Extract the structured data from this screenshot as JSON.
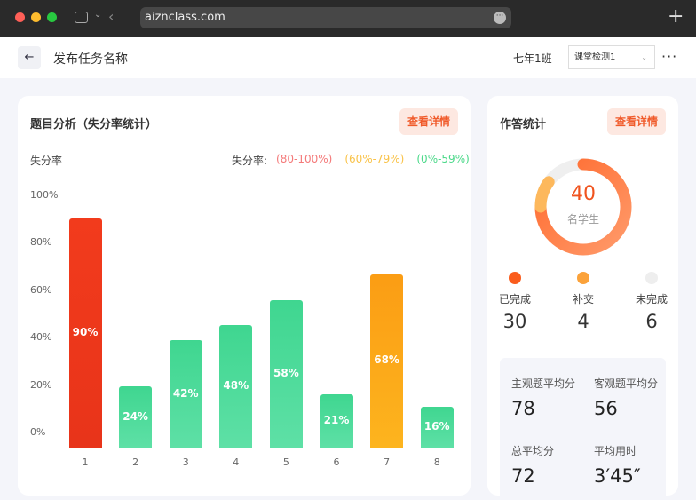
{
  "browser": {
    "url": "aiznclass.com"
  },
  "header": {
    "title": "发布任务名称",
    "class_name": "七年1班",
    "select_value": "课堂检测1"
  },
  "left_card": {
    "title": "题目分析（失分率统计）",
    "detail_button": "查看详情",
    "legend_prefix": "失分率:",
    "legend": [
      {
        "label": "(80-100%)",
        "color": "#f47a7a"
      },
      {
        "label": "(60%-79%)",
        "color": "#f9c34a"
      },
      {
        "label": "(0%-59%)",
        "color": "#4cd98a"
      }
    ]
  },
  "chart_data": {
    "type": "bar",
    "ylabel": "失分率",
    "categories": [
      "1",
      "2",
      "3",
      "4",
      "5",
      "6",
      "7",
      "8"
    ],
    "values": [
      90,
      24,
      42,
      48,
      58,
      21,
      68,
      16
    ],
    "value_labels": [
      "90%",
      "24%",
      "42%",
      "48%",
      "58%",
      "21%",
      "68%",
      "16%"
    ],
    "yticks": [
      "100%",
      "80%",
      "60%",
      "40%",
      "20%",
      "0%"
    ],
    "ylim": [
      0,
      100
    ],
    "grid": false,
    "colors": {
      "high": "#ee3a1e",
      "mid": "#fba21a",
      "low": "#3fd690"
    }
  },
  "right_card": {
    "title": "作答统计",
    "detail_button": "查看详情",
    "total": "40",
    "total_label": "名学生",
    "stats": [
      {
        "label": "已完成",
        "value": "30",
        "color": "#fa5c1c"
      },
      {
        "label": "补交",
        "value": "4",
        "color": "#fba23a"
      },
      {
        "label": "未完成",
        "value": "6",
        "color": "#eeeeee"
      }
    ],
    "summary": [
      {
        "label": "主观题平均分",
        "value": "78"
      },
      {
        "label": "客观题平均分",
        "value": "56"
      },
      {
        "label": "总平均分",
        "value": "72"
      },
      {
        "label": "平均用时",
        "value": "3′45″"
      }
    ]
  }
}
